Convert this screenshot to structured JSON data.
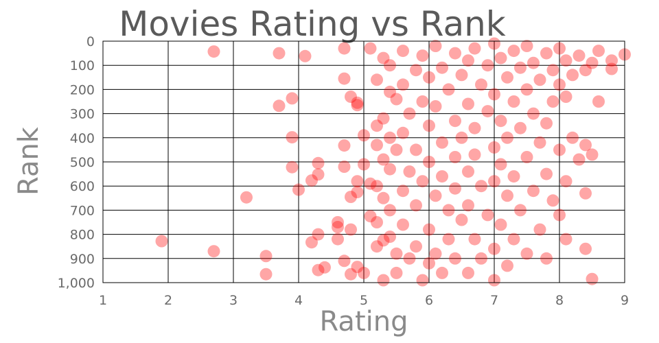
{
  "chart_data": {
    "type": "scatter",
    "title": "Movies Rating vs Rank",
    "xlabel": "Rating",
    "ylabel": "Rank",
    "xlim": [
      1,
      9
    ],
    "ylim": [
      0,
      1000
    ],
    "y_inverted": true,
    "grid": true,
    "x_ticks": [
      "1",
      "2",
      "3",
      "4",
      "5",
      "6",
      "7",
      "8",
      "9"
    ],
    "y_ticks": [
      "0",
      "100",
      "200",
      "300",
      "400",
      "500",
      "600",
      "700",
      "800",
      "900",
      "1,000"
    ],
    "marker_color": "#ff0000",
    "marker_opacity": 0.35,
    "series": [
      {
        "points": [
          [
            1.9,
            828
          ],
          [
            2.7,
            43
          ],
          [
            2.7,
            870
          ],
          [
            3.2,
            647
          ],
          [
            3.5,
            890
          ],
          [
            3.5,
            965
          ],
          [
            3.7,
            50
          ],
          [
            3.7,
            268
          ],
          [
            3.9,
            237
          ],
          [
            3.9,
            398
          ],
          [
            3.9,
            522
          ],
          [
            4.0,
            615
          ],
          [
            4.1,
            62
          ],
          [
            4.2,
            577
          ],
          [
            4.2,
            833
          ],
          [
            4.3,
            505
          ],
          [
            4.3,
            552
          ],
          [
            4.3,
            800
          ],
          [
            4.3,
            948
          ],
          [
            4.4,
            937
          ],
          [
            4.6,
            770
          ],
          [
            4.6,
            820
          ],
          [
            4.6,
            750
          ],
          [
            4.7,
            30
          ],
          [
            4.7,
            155
          ],
          [
            4.7,
            432
          ],
          [
            4.7,
            520
          ],
          [
            4.7,
            910
          ],
          [
            4.8,
            230
          ],
          [
            4.8,
            645
          ],
          [
            4.8,
            780
          ],
          [
            4.8,
            965
          ],
          [
            4.9,
            255
          ],
          [
            4.9,
            265
          ],
          [
            4.9,
            580
          ],
          [
            4.9,
            625
          ],
          [
            4.9,
            935
          ],
          [
            5.0,
            390
          ],
          [
            5.0,
            510
          ],
          [
            5.0,
            960
          ],
          [
            5.1,
            30
          ],
          [
            5.1,
            590
          ],
          [
            5.1,
            725
          ],
          [
            5.2,
            160
          ],
          [
            5.2,
            350
          ],
          [
            5.2,
            430
          ],
          [
            5.2,
            600
          ],
          [
            5.2,
            750
          ],
          [
            5.2,
            850
          ],
          [
            5.3,
            70
          ],
          [
            5.3,
            320
          ],
          [
            5.3,
            490
          ],
          [
            5.3,
            650
          ],
          [
            5.3,
            825
          ],
          [
            5.3,
            990
          ],
          [
            5.4,
            100
          ],
          [
            5.4,
            210
          ],
          [
            5.4,
            400
          ],
          [
            5.4,
            530
          ],
          [
            5.4,
            700
          ],
          [
            5.4,
            810
          ],
          [
            5.5,
            240
          ],
          [
            5.5,
            450
          ],
          [
            5.5,
            880
          ],
          [
            5.5,
            960
          ],
          [
            5.6,
            40
          ],
          [
            5.6,
            180
          ],
          [
            5.6,
            380
          ],
          [
            5.6,
            620
          ],
          [
            5.6,
            760
          ],
          [
            5.7,
            300
          ],
          [
            5.7,
            540
          ],
          [
            5.7,
            900
          ],
          [
            5.8,
            120
          ],
          [
            5.8,
            450
          ],
          [
            5.8,
            680
          ],
          [
            5.8,
            850
          ],
          [
            5.9,
            60
          ],
          [
            5.9,
            250
          ],
          [
            5.9,
            580
          ],
          [
            5.9,
            990
          ],
          [
            6.0,
            150
          ],
          [
            6.0,
            350
          ],
          [
            6.0,
            500
          ],
          [
            6.0,
            780
          ],
          [
            6.0,
            920
          ],
          [
            6.1,
            20
          ],
          [
            6.1,
            270
          ],
          [
            6.1,
            640
          ],
          [
            6.1,
            880
          ],
          [
            6.2,
            110
          ],
          [
            6.2,
            420
          ],
          [
            6.2,
            560
          ],
          [
            6.2,
            960
          ],
          [
            6.3,
            200
          ],
          [
            6.3,
            700
          ],
          [
            6.3,
            820
          ],
          [
            6.4,
            50
          ],
          [
            6.4,
            330
          ],
          [
            6.4,
            480
          ],
          [
            6.4,
            610
          ],
          [
            6.4,
            900
          ],
          [
            6.5,
            140
          ],
          [
            6.5,
            400
          ],
          [
            6.5,
            740
          ],
          [
            6.6,
            80
          ],
          [
            6.6,
            260
          ],
          [
            6.6,
            540
          ],
          [
            6.6,
            680
          ],
          [
            6.6,
            960
          ],
          [
            6.7,
            30
          ],
          [
            6.7,
            360
          ],
          [
            6.7,
            470
          ],
          [
            6.7,
            820
          ],
          [
            6.8,
            180
          ],
          [
            6.8,
            600
          ],
          [
            6.8,
            900
          ],
          [
            6.9,
            100
          ],
          [
            6.9,
            290
          ],
          [
            6.9,
            720
          ],
          [
            7.0,
            10
          ],
          [
            7.0,
            220
          ],
          [
            7.0,
            440
          ],
          [
            7.0,
            580
          ],
          [
            7.0,
            860
          ],
          [
            7.0,
            990
          ],
          [
            7.1,
            70
          ],
          [
            7.1,
            330
          ],
          [
            7.1,
            510
          ],
          [
            7.1,
            760
          ],
          [
            7.2,
            150
          ],
          [
            7.2,
            400
          ],
          [
            7.2,
            640
          ],
          [
            7.2,
            930
          ],
          [
            7.3,
            40
          ],
          [
            7.3,
            250
          ],
          [
            7.3,
            560
          ],
          [
            7.3,
            820
          ],
          [
            7.4,
            110
          ],
          [
            7.4,
            360
          ],
          [
            7.4,
            700
          ],
          [
            7.5,
            20
          ],
          [
            7.5,
            200
          ],
          [
            7.5,
            480
          ],
          [
            7.5,
            880
          ],
          [
            7.6,
            90
          ],
          [
            7.6,
            300
          ],
          [
            7.6,
            620
          ],
          [
            7.7,
            160
          ],
          [
            7.7,
            420
          ],
          [
            7.7,
            780
          ],
          [
            7.8,
            50
          ],
          [
            7.8,
            340
          ],
          [
            7.8,
            550
          ],
          [
            7.8,
            900
          ],
          [
            7.9,
            120
          ],
          [
            7.9,
            250
          ],
          [
            7.9,
            660
          ],
          [
            8.0,
            30
          ],
          [
            8.0,
            180
          ],
          [
            8.0,
            450
          ],
          [
            8.0,
            720
          ],
          [
            8.1,
            80
          ],
          [
            8.1,
            230
          ],
          [
            8.1,
            580
          ],
          [
            8.1,
            820
          ],
          [
            8.2,
            140
          ],
          [
            8.2,
            400
          ],
          [
            8.3,
            60
          ],
          [
            8.3,
            490
          ],
          [
            8.4,
            120
          ],
          [
            8.4,
            430
          ],
          [
            8.4,
            630
          ],
          [
            8.4,
            860
          ],
          [
            8.5,
            90
          ],
          [
            8.5,
            470
          ],
          [
            8.5,
            985
          ],
          [
            8.6,
            40
          ],
          [
            8.6,
            250
          ],
          [
            8.8,
            80
          ],
          [
            8.8,
            115
          ],
          [
            9.0,
            55
          ]
        ]
      }
    ]
  }
}
